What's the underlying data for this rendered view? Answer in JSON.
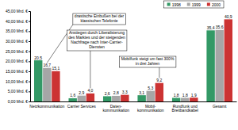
{
  "chart_data": {
    "type": "bar",
    "categories": [
      "Netzkommunikation",
      "Carrier Services",
      "Daten-\nkommunikation",
      "Mobil-\nkommunikation",
      "Rundfunk und\nBreitbandkabel",
      "Gesamt"
    ],
    "series": [
      {
        "name": "1998",
        "color": "#339966",
        "values": [
          20.5,
          1.6,
          2.6,
          3.1,
          1.8,
          35.4
        ],
        "value_labels": [
          "20,5",
          "1,6",
          "2,6",
          "3,1",
          "1,8",
          "35,4"
        ]
      },
      {
        "name": "1999",
        "color": "#a6a6a6",
        "values": [
          16.7,
          2.9,
          2.8,
          5.3,
          1.8,
          35.6
        ],
        "value_labels": [
          "16,7",
          "2,9",
          "2,8",
          "5,3",
          "1,8",
          "35,6"
        ]
      },
      {
        "name": "2000",
        "color": "#cc3333",
        "values": [
          15.1,
          4.0,
          3.3,
          9.2,
          1.9,
          40.9
        ],
        "value_labels": [
          "15,1",
          "4,0",
          "3,3",
          "9,2",
          "1,9",
          "40,9"
        ]
      }
    ],
    "ylim": [
      0,
      45
    ],
    "yticks": [
      {
        "value": 0,
        "label": "0,00 Mrd. €"
      },
      {
        "value": 5,
        "label": "5,00 Mrd. €"
      },
      {
        "value": 10,
        "label": "10,00 Mrd. €"
      },
      {
        "value": 15,
        "label": "15,00 Mrd. €"
      },
      {
        "value": 20,
        "label": "20,00 Mrd. €"
      },
      {
        "value": 25,
        "label": "25,00 Mrd. €"
      },
      {
        "value": 30,
        "label": "30,00 Mrd. €"
      },
      {
        "value": 35,
        "label": "35,00 Mrd. €"
      },
      {
        "value": 40,
        "label": "40,00 Mrd. €"
      },
      {
        "value": 45,
        "label": "45,00 Mrd. €"
      }
    ],
    "grid": false,
    "legend": "top-right",
    "data_labels": true,
    "annotations": [
      {
        "lines": [
          "drastische Einbußen bei der",
          "klassischen Telefonie"
        ]
      },
      {
        "lines": [
          "Anstiegen durch Liberalisierung",
          "des Marktes und der steigenden",
          "Nachfrage nach Inter-Carrier-",
          "Diensten"
        ]
      },
      {
        "lines": [
          "Mobilfunk steigt um fast 300%",
          "in drei Jahren"
        ]
      }
    ]
  }
}
